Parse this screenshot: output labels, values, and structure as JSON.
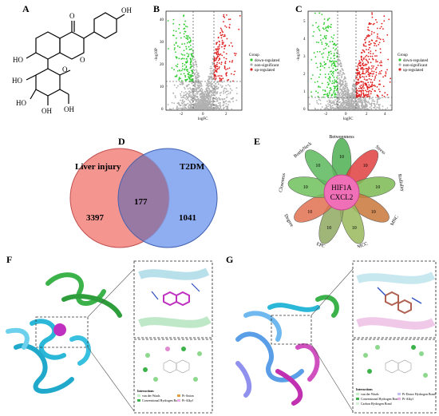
{
  "panels": {
    "A": {
      "label": "A",
      "atom_labels": [
        "O",
        "OH",
        "O",
        "HO",
        "O",
        "HO",
        "HO",
        "OH",
        "OH"
      ]
    },
    "B": {
      "label": "B",
      "chart_data": {
        "type": "scatter",
        "ylabel": "-log10P",
        "xlabel": "logFC",
        "xticks": [
          "-2",
          "0",
          "2"
        ],
        "yticks": [
          "0",
          "10",
          "20",
          "30",
          "40"
        ],
        "legend_title": "Group",
        "legend": [
          "down-regulated",
          "non-significant",
          "up-regulated"
        ],
        "colors": [
          "#2ecc2e",
          "#b0b0b0",
          "#e02020"
        ]
      }
    },
    "C": {
      "label": "C",
      "chart_data": {
        "type": "scatter",
        "ylabel": "-log10P",
        "xlabel": "logFC",
        "xticks": [
          "-2",
          "0",
          "2",
          "4"
        ],
        "yticks": [
          "0",
          "1",
          "2",
          "3",
          "4",
          "5"
        ],
        "legend_title": "Group",
        "legend": [
          "down-regulated",
          "non-significant",
          "up-regulated"
        ],
        "colors": [
          "#2ecc2e",
          "#b0b0b0",
          "#e02020"
        ]
      }
    },
    "D": {
      "label": "D",
      "left_title": "Liver injury",
      "right_title": "T2DM",
      "left_count": "3397",
      "overlap_count": "177",
      "right_count": "1041"
    },
    "E": {
      "label": "E",
      "center_top": "HIF1A",
      "center_bottom": "CXCL2",
      "petals": [
        {
          "name": "Betweenness",
          "value": "10",
          "color": "#4caf50"
        },
        {
          "name": "Stress",
          "value": "10",
          "color": "#e04040"
        },
        {
          "name": "Radiality",
          "value": "10",
          "color": "#7cba52"
        },
        {
          "name": "MNC",
          "value": "10",
          "color": "#c9773a"
        },
        {
          "name": "MCC",
          "value": "10",
          "color": "#98b85a"
        },
        {
          "name": "EPC",
          "value": "10",
          "color": "#8fa860"
        },
        {
          "name": "Degree",
          "value": "10",
          "color": "#e07050"
        },
        {
          "name": "Closeness",
          "value": "10",
          "color": "#6fbf5a"
        },
        {
          "name": "BottleNeck",
          "value": "10",
          "color": "#5cb85c"
        }
      ]
    },
    "F": {
      "label": "F",
      "legend_title": "Interactions",
      "legend": [
        "van der Waals",
        "Conventional Hydrogen Bond",
        "Pi-Anion",
        "Pi-Alkyl"
      ]
    },
    "G": {
      "label": "G",
      "legend_title": "Interactions",
      "legend": [
        "van der Waals",
        "Conventional Hydrogen Bond",
        "Carbon Hydrogen Bond",
        "Pi-Donor Hydrogen Bond",
        "Pi-Alkyl"
      ]
    }
  }
}
